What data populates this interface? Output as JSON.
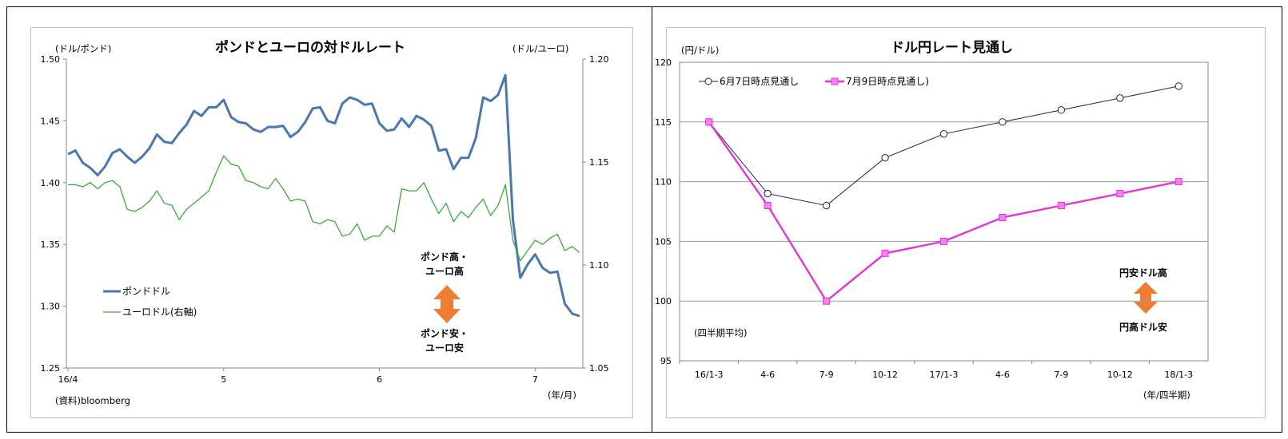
{
  "left_chart": {
    "title": "ポンドとユーロの対ドルレート",
    "left_unit": "(ドル/ポンド)",
    "right_unit": "(ドル/ユーロ)",
    "source": "(資料)bloomberg",
    "x_unit": "(年/月)",
    "annotation_up": [
      "ポンド高・",
      "ユーロ高"
    ],
    "annotation_down": [
      "ポンド安・",
      "ユーロ安"
    ],
    "arrow_color": "#ed7d31"
  },
  "right_chart": {
    "title": "ドル円レート見通し",
    "y_unit": "(円/ドル)",
    "x_unit": "(年/四半期)",
    "note": "(四半期平均)",
    "annotation_up": "円安ドル高",
    "annotation_down": "円高ドル安",
    "arrow_color": "#ed7d31"
  },
  "chart_data": [
    {
      "type": "line",
      "title": "ポンドとユーロの対ドルレート",
      "x_ticks": [
        "16/4",
        "5",
        "6",
        "7"
      ],
      "x_tick_index": [
        0,
        21,
        42,
        63
      ],
      "ylim": [
        1.25,
        1.5
      ],
      "y_ticks": [
        "1.25",
        "1.30",
        "1.35",
        "1.40",
        "1.45",
        "1.50"
      ],
      "y2lim": [
        1.05,
        1.2
      ],
      "y2_ticks": [
        "1.05",
        "1.10",
        "1.15",
        "1.20"
      ],
      "legend": "left-middle",
      "series": [
        {
          "name": "ポンドドル",
          "axis": "left",
          "color": "#4a77b0",
          "values": [
            1.423,
            1.426,
            1.416,
            1.412,
            1.406,
            1.413,
            1.424,
            1.427,
            1.421,
            1.416,
            1.421,
            1.428,
            1.439,
            1.433,
            1.432,
            1.44,
            1.447,
            1.458,
            1.454,
            1.461,
            1.461,
            1.467,
            1.453,
            1.449,
            1.448,
            1.443,
            1.441,
            1.445,
            1.445,
            1.446,
            1.437,
            1.441,
            1.449,
            1.46,
            1.461,
            1.45,
            1.448,
            1.464,
            1.469,
            1.467,
            1.463,
            1.464,
            1.448,
            1.442,
            1.443,
            1.452,
            1.445,
            1.454,
            1.451,
            1.446,
            1.426,
            1.427,
            1.411,
            1.42,
            1.42,
            1.436,
            1.469,
            1.466,
            1.471,
            1.487,
            1.37,
            1.323,
            1.334,
            1.342,
            1.331,
            1.327,
            1.328,
            1.302,
            1.294,
            1.292
          ]
        },
        {
          "name": "ユーロドル(右軸)",
          "axis": "right",
          "color": "#3daa3d",
          "values": [
            1.139,
            1.139,
            1.138,
            1.14,
            1.137,
            1.14,
            1.141,
            1.138,
            1.127,
            1.126,
            1.128,
            1.131,
            1.136,
            1.13,
            1.129,
            1.122,
            1.127,
            1.13,
            1.133,
            1.136,
            1.145,
            1.153,
            1.149,
            1.148,
            1.141,
            1.14,
            1.138,
            1.137,
            1.142,
            1.137,
            1.131,
            1.132,
            1.131,
            1.121,
            1.12,
            1.122,
            1.121,
            1.114,
            1.115,
            1.12,
            1.112,
            1.114,
            1.114,
            1.119,
            1.116,
            1.137,
            1.136,
            1.136,
            1.14,
            1.132,
            1.125,
            1.13,
            1.121,
            1.126,
            1.123,
            1.128,
            1.132,
            1.124,
            1.129,
            1.139,
            1.112,
            1.102,
            1.107,
            1.112,
            1.11,
            1.113,
            1.115,
            1.107,
            1.109,
            1.106
          ]
        }
      ]
    },
    {
      "type": "line",
      "title": "ドル円レート見通し",
      "categories": [
        "16/1-3",
        "4-6",
        "7-9",
        "10-12",
        "17/1-3",
        "4-6",
        "7-9",
        "10-12",
        "18/1-3"
      ],
      "ylim": [
        95,
        120
      ],
      "y_ticks": [
        "95",
        "100",
        "105",
        "110",
        "115",
        "120"
      ],
      "grid": true,
      "legend": "top-left",
      "series": [
        {
          "name": "6月7日時点見通し",
          "color": "#1f1f5c",
          "marker": "circle",
          "values": [
            115,
            109,
            108,
            112,
            114,
            115,
            116,
            117,
            118
          ]
        },
        {
          "name": "7月9日時点見通し",
          "color": "#e633d6",
          "marker": "square",
          "values": [
            115,
            108,
            100,
            104,
            105,
            107,
            108,
            109,
            110
          ]
        }
      ]
    }
  ]
}
